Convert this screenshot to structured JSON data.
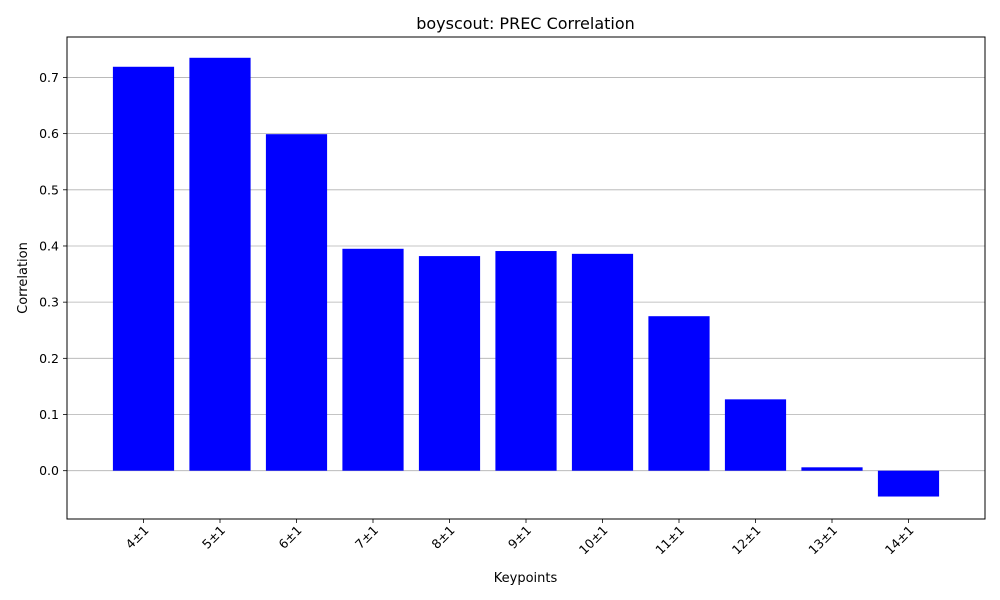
{
  "chart_data": {
    "type": "bar",
    "title": "boyscout: PREC Correlation",
    "xlabel": "Keypoints",
    "ylabel": "Correlation",
    "categories": [
      "4±1",
      "5±1",
      "6±1",
      "7±1",
      "8±1",
      "9±1",
      "10±1",
      "11±1",
      "12±1",
      "13±1",
      "14±1"
    ],
    "values": [
      0.719,
      0.735,
      0.599,
      0.395,
      0.382,
      0.391,
      0.386,
      0.275,
      0.127,
      0.006,
      -0.046
    ],
    "ylim": [
      -0.086,
      0.772
    ],
    "yticks": [
      0.0,
      0.1,
      0.2,
      0.3,
      0.4,
      0.5,
      0.6,
      0.7
    ],
    "ytick_labels": [
      "0.0",
      "0.1",
      "0.2",
      "0.3",
      "0.4",
      "0.5",
      "0.6",
      "0.7"
    ],
    "grid": "y",
    "bar_color": "#0000ff",
    "xtick_rotation_deg": 45
  }
}
